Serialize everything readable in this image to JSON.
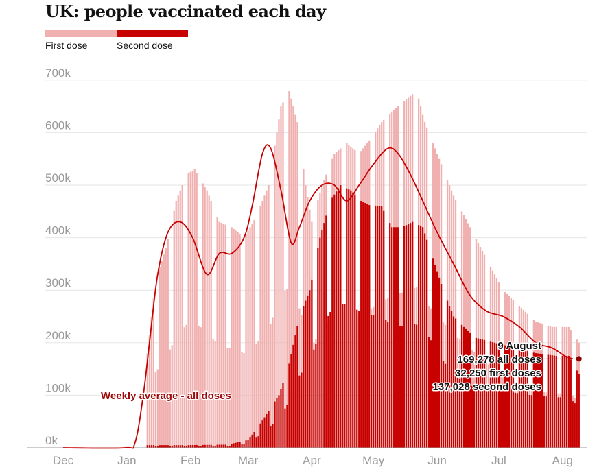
{
  "colors": {
    "first_dose": "#f0b0b0",
    "second_dose": "#c70000",
    "average_line": "#c70000",
    "marker": "#8b0000",
    "grid": "#e6e6e6"
  },
  "chart_data": {
    "type": "bar",
    "title": "UK: people vaccinated each day",
    "legend": [
      {
        "key": "first",
        "label": "First dose"
      },
      {
        "key": "second",
        "label": "Second dose"
      }
    ],
    "y_ticks": [
      "0k",
      "100k",
      "200k",
      "300k",
      "400k",
      "500k",
      "600k",
      "700k"
    ],
    "ylim": [
      0,
      800000
    ],
    "x_ticks": [
      "Dec",
      "Jan",
      "Feb",
      "Mar",
      "Apr",
      "May",
      "Jun",
      "Jul",
      "Aug"
    ],
    "x_tick_days": [
      0,
      31,
      62,
      90,
      121,
      151,
      182,
      212,
      243
    ],
    "x_range_days": [
      0,
      256
    ],
    "x_units": "days since 1 December 2020",
    "series": [
      {
        "name": "First dose (stacked total, daily)",
        "first_bar_day": 41,
        "anchors": [
          [
            41,
            180000
          ],
          [
            45,
            320000
          ],
          [
            50,
            380000
          ],
          [
            55,
            470000
          ],
          [
            60,
            520000
          ],
          [
            64,
            530000
          ],
          [
            70,
            490000
          ],
          [
            76,
            430000
          ],
          [
            82,
            420000
          ],
          [
            88,
            400000
          ],
          [
            94,
            440000
          ],
          [
            100,
            500000
          ],
          [
            106,
            650000
          ],
          [
            110,
            680000
          ],
          [
            114,
            620000
          ],
          [
            118,
            500000
          ],
          [
            121,
            430000
          ],
          [
            126,
            500000
          ],
          [
            132,
            560000
          ],
          [
            138,
            580000
          ],
          [
            144,
            560000
          ],
          [
            150,
            590000
          ],
          [
            155,
            620000
          ],
          [
            160,
            640000
          ],
          [
            166,
            660000
          ],
          [
            172,
            680000
          ],
          [
            176,
            620000
          ],
          [
            182,
            560000
          ],
          [
            190,
            480000
          ],
          [
            198,
            420000
          ],
          [
            206,
            360000
          ],
          [
            214,
            300000
          ],
          [
            222,
            270000
          ],
          [
            230,
            240000
          ],
          [
            238,
            230000
          ],
          [
            246,
            230000
          ],
          [
            251,
            200000
          ]
        ],
        "weekend_dip": 0.45,
        "dip_days": [
          3,
          4
        ]
      },
      {
        "name": "Second dose (daily)",
        "first_bar_day": 41,
        "anchors": [
          [
            41,
            5000
          ],
          [
            60,
            5000
          ],
          [
            80,
            6000
          ],
          [
            90,
            15000
          ],
          [
            95,
            40000
          ],
          [
            100,
            70000
          ],
          [
            105,
            100000
          ],
          [
            110,
            160000
          ],
          [
            115,
            250000
          ],
          [
            120,
            300000
          ],
          [
            125,
            400000
          ],
          [
            130,
            470000
          ],
          [
            135,
            500000
          ],
          [
            140,
            490000
          ],
          [
            145,
            470000
          ],
          [
            150,
            460000
          ],
          [
            155,
            460000
          ],
          [
            160,
            420000
          ],
          [
            165,
            420000
          ],
          [
            170,
            430000
          ],
          [
            175,
            420000
          ],
          [
            180,
            360000
          ],
          [
            185,
            300000
          ],
          [
            190,
            250000
          ],
          [
            195,
            230000
          ],
          [
            200,
            210000
          ],
          [
            210,
            200000
          ],
          [
            220,
            190000
          ],
          [
            230,
            180000
          ],
          [
            240,
            175000
          ],
          [
            246,
            175000
          ],
          [
            251,
            140000
          ]
        ],
        "weekend_dip": 0.55,
        "dip_days": [
          3,
          4
        ]
      },
      {
        "name": "Weekly average - all doses",
        "type": "line",
        "points": [
          [
            0,
            0
          ],
          [
            30,
            0
          ],
          [
            35,
            10000
          ],
          [
            39,
            100000
          ],
          [
            42,
            200000
          ],
          [
            46,
            330000
          ],
          [
            51,
            410000
          ],
          [
            57,
            430000
          ],
          [
            63,
            400000
          ],
          [
            70,
            330000
          ],
          [
            76,
            370000
          ],
          [
            82,
            370000
          ],
          [
            88,
            400000
          ],
          [
            92,
            460000
          ],
          [
            97,
            560000
          ],
          [
            101,
            570000
          ],
          [
            106,
            490000
          ],
          [
            111,
            390000
          ],
          [
            115,
            420000
          ],
          [
            120,
            470000
          ],
          [
            126,
            500000
          ],
          [
            132,
            500000
          ],
          [
            138,
            470000
          ],
          [
            144,
            500000
          ],
          [
            151,
            540000
          ],
          [
            158,
            570000
          ],
          [
            163,
            560000
          ],
          [
            169,
            520000
          ],
          [
            175,
            470000
          ],
          [
            182,
            410000
          ],
          [
            190,
            350000
          ],
          [
            198,
            290000
          ],
          [
            206,
            260000
          ],
          [
            214,
            250000
          ],
          [
            222,
            230000
          ],
          [
            230,
            200000
          ],
          [
            238,
            190000
          ],
          [
            244,
            175000
          ],
          [
            248,
            169278
          ]
        ]
      }
    ],
    "annotations": {
      "average_label": "Weekly average - all doses",
      "latest_date": "9 August",
      "all_doses": "169,278 all doses",
      "first_doses": "32,250 first doses",
      "second_doses": "137,028 second doses",
      "latest_day": 251,
      "latest_value": 169278
    }
  }
}
